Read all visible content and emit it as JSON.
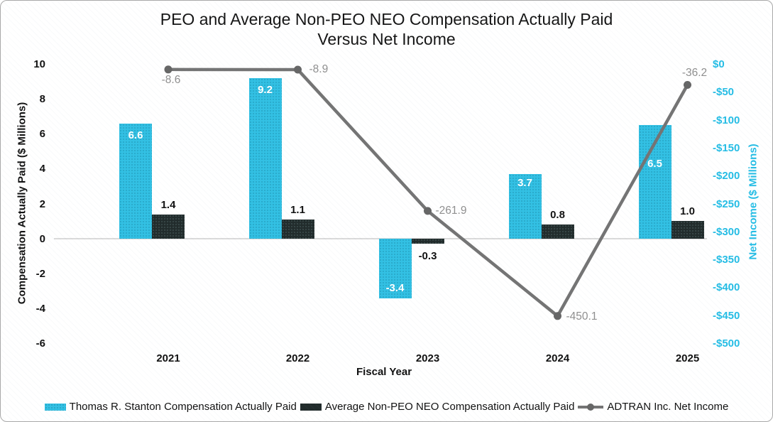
{
  "title": {
    "line1": "PEO and Average Non-PEO NEO Compensation Actually Paid",
    "line2": "Versus Net Income"
  },
  "chart_data": {
    "type": "bar+line combo",
    "categories": [
      "2021",
      "2022",
      "2023",
      "2024",
      "2025"
    ],
    "series": [
      {
        "name": "Thomas R. Stanton Compensation Actually Paid",
        "type": "bar",
        "axis": "left",
        "color": "#32c1e4",
        "values": [
          6.6,
          9.2,
          -3.4,
          3.7,
          6.5
        ],
        "labels": [
          "6.6",
          "9.2",
          "-3.4",
          "3.7",
          "6.5"
        ]
      },
      {
        "name": "Average Non-PEO NEO Compensation Actually Paid",
        "type": "bar",
        "axis": "left",
        "color": "#212b2b",
        "values": [
          1.4,
          1.1,
          -0.3,
          0.8,
          1.0
        ],
        "labels": [
          "1.4",
          "1.1",
          "-0.3",
          "0.8",
          "1.0"
        ]
      },
      {
        "name": "ADTRAN Inc. Net Income",
        "type": "line",
        "axis": "right",
        "color": "#747474",
        "values": [
          -8.6,
          -8.9,
          -261.9,
          -450.1,
          -36.2
        ],
        "labels": [
          "-8.6",
          "-8.9",
          "-261.9",
          "-450.1",
          "-36.2"
        ]
      }
    ],
    "xlabel": "Fiscal Year",
    "left_axis": {
      "title": "Compensation Actually Paid ($ Millions)",
      "ticks": [
        "10",
        "8",
        "6",
        "4",
        "2",
        "0",
        "-2",
        "-4",
        "-6"
      ],
      "max": 10,
      "min": -6
    },
    "right_axis": {
      "title": "Net Income ($ Millions)",
      "ticks": [
        "$0",
        "-$50",
        "-$100",
        "-$150",
        "-$200",
        "-$250",
        "-$300",
        "-$350",
        "-$400",
        "-$450",
        "-$500"
      ],
      "max": 0,
      "min": -500,
      "color": "#25bde5"
    },
    "legend_position": "bottom",
    "grid": "zero-line-only"
  }
}
